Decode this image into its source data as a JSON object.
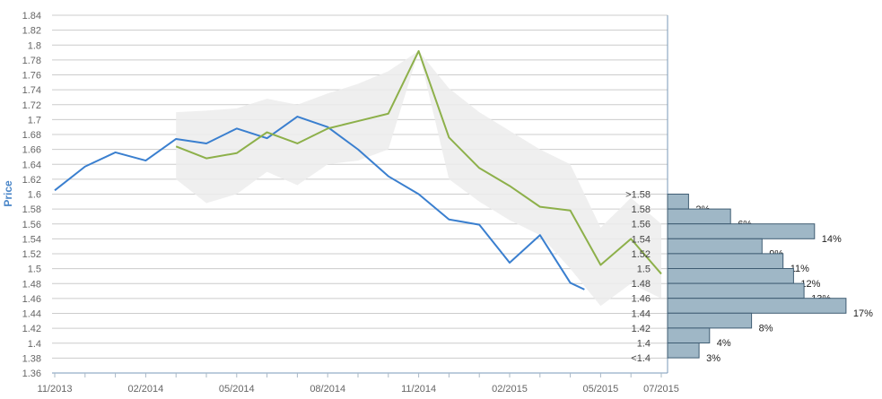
{
  "chart_data": {
    "type": "line",
    "ylabel": "Price",
    "ylim": [
      1.36,
      1.84
    ],
    "y_ticks": [
      "1.36",
      "1.38",
      "1.4",
      "1.42",
      "1.44",
      "1.46",
      "1.48",
      "1.5",
      "1.52",
      "1.54",
      "1.56",
      "1.58",
      "1.6",
      "1.62",
      "1.64",
      "1.66",
      "1.68",
      "1.7",
      "1.72",
      "1.74",
      "1.76",
      "1.78",
      "1.8",
      "1.82",
      "1.84"
    ],
    "x_ticks": [
      "11/2013",
      "02/2014",
      "05/2014",
      "08/2014",
      "11/2014",
      "02/2015",
      "05/2015",
      "07/2015"
    ],
    "grid": "horizontal",
    "colors": {
      "actual": "#3a7fcf",
      "forecast": "#8db04a",
      "band": "#ececec",
      "hist_bar": "#9fb7c6",
      "hist_edge": "#3f5d73"
    },
    "series": [
      {
        "key": "actual",
        "x": [
          "2013-11",
          "2013-12",
          "2014-01",
          "2014-02",
          "2014-03",
          "2014-04",
          "2014-05",
          "2014-06",
          "2014-07",
          "2014-08",
          "2014-09",
          "2014-10",
          "2014-11",
          "2014-12",
          "2015-01",
          "2015-02",
          "2015-03",
          "2015-04",
          "2015-04-15"
        ],
        "values": [
          1.605,
          1.637,
          1.656,
          1.645,
          1.674,
          1.668,
          1.688,
          1.675,
          1.704,
          1.69,
          1.66,
          1.624,
          1.6,
          1.566,
          1.559,
          1.508,
          1.545,
          1.481,
          1.472
        ]
      },
      {
        "key": "forecast",
        "x": [
          "2014-03",
          "2014-04",
          "2014-05",
          "2014-06",
          "2014-07",
          "2014-08",
          "2014-09",
          "2014-10",
          "2014-11",
          "2014-12",
          "2015-01",
          "2015-02",
          "2015-03",
          "2015-04",
          "2015-05",
          "2015-06",
          "2015-07"
        ],
        "values": [
          1.664,
          1.648,
          1.655,
          1.683,
          1.668,
          1.688,
          1.698,
          1.708,
          1.792,
          1.676,
          1.635,
          1.611,
          1.583,
          1.578,
          1.505,
          1.54,
          1.493
        ]
      }
    ],
    "band": {
      "x": [
        "2014-03",
        "2014-04",
        "2014-05",
        "2014-06",
        "2014-07",
        "2014-08",
        "2014-09",
        "2014-10",
        "2014-11",
        "2014-12",
        "2015-01",
        "2015-02",
        "2015-03",
        "2015-04",
        "2015-05",
        "2015-06",
        "2015-07"
      ],
      "upper": [
        1.71,
        1.712,
        1.715,
        1.728,
        1.72,
        1.735,
        1.748,
        1.765,
        1.792,
        1.742,
        1.71,
        1.685,
        1.66,
        1.64,
        1.555,
        1.595,
        1.56
      ],
      "lower": [
        1.62,
        1.588,
        1.6,
        1.63,
        1.612,
        1.64,
        1.645,
        1.66,
        1.792,
        1.62,
        1.59,
        1.565,
        1.545,
        1.5,
        1.45,
        1.48,
        1.46
      ]
    },
    "distribution": {
      "categories": [
        ">1.58",
        "1.58",
        "1.56",
        "1.54",
        "1.52",
        "1.5",
        "1.48",
        "1.46",
        "1.44",
        "1.42",
        "1.4",
        "<1.4"
      ],
      "percents": [
        2,
        6,
        14,
        9,
        11,
        12,
        13,
        17,
        8,
        4,
        3
      ],
      "labels": [
        "2%",
        "6%",
        "14%",
        "9%",
        "11%",
        "12%",
        "13%",
        "17%",
        "8%",
        "4%",
        "3%"
      ]
    }
  }
}
